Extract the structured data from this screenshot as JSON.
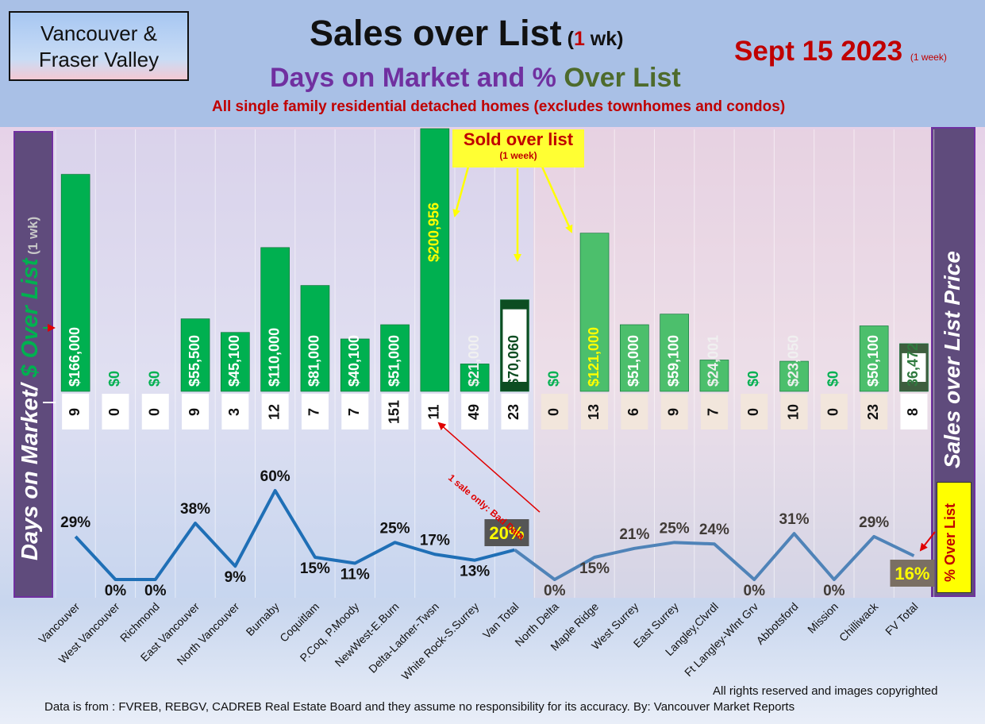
{
  "header": {
    "region_line1": "Vancouver &",
    "region_line2": "Fraser Valley",
    "title_main": "Sales over List",
    "title_paren_open": " (",
    "title_num": "1",
    "title_paren_close": " wk)",
    "subtitle_a": "Days on Market and % ",
    "subtitle_b": "Over List",
    "note": "All single family residential detached homes (excludes townhomes and condos)",
    "date": "Sept 15  2023",
    "date_note": "(1 week)"
  },
  "axis_labels": {
    "left_a": "Days on Market/ ",
    "left_b": "$ Over List",
    "left_c": " (1 wk)",
    "right": "Sales over List Price",
    "pct": "% Over List"
  },
  "callout": {
    "line1": "Sold over list",
    "line2": "(1 week)"
  },
  "annotation": "1 sale only: Bad Data",
  "footer": {
    "rights": "All rights reserved and  images copyrighted",
    "source": "Data is from : FVREB, REBGV, CADREB Real Estate Board and they assume no responsibility for its accuracy. By: Vancouver Market Reports"
  },
  "colors": {
    "bar": "#00b050",
    "fv_bar": "#4cbf6c",
    "line_van": "#1f6fb6",
    "line_fv": "#4f83b8",
    "total_van": "#0d4d22",
    "total_fv": "#3e5e3e"
  },
  "chart_data": {
    "type": "bar",
    "categories": [
      "Vancouver",
      "West Vancouver",
      "Richmond",
      "East Vancouver",
      "North Vancouver",
      "Burnaby",
      "Coquitlam",
      "P.Coq, P.Moody",
      "NewWest-E.Burn",
      "Delta-Ladner-Twsn",
      "White Rock-S.Surrey",
      "Van Total",
      "North Delta",
      "Maple Ridge",
      "West Surrey",
      "East Surrey",
      "Langley,Clvrdl",
      "Ft Langley-Wlnt Grv",
      "Abbotsford",
      "Mission",
      "Chilliwack",
      "FV Total"
    ],
    "series": [
      {
        "name": "$ Over List",
        "values": [
          166000,
          0,
          0,
          55500,
          45100,
          110000,
          81000,
          40100,
          51000,
          200956,
          21000,
          70060,
          0,
          121000,
          51000,
          59100,
          24001,
          0,
          23050,
          0,
          50100,
          36472
        ],
        "labels": [
          "$166,000",
          "$0",
          "$0",
          "$55,500",
          "$45,100",
          "$110,000",
          "$81,000",
          "$40,100",
          "$51,000",
          "$200,956",
          "$21,000",
          "$70,060",
          "$0",
          "$121,000",
          "$51,000",
          "$59,100",
          "$24,001",
          "$0",
          "$23,050",
          "$0",
          "$50,100",
          "36,472"
        ]
      },
      {
        "name": "Days on Market",
        "values": [
          9,
          0,
          0,
          9,
          3,
          12,
          7,
          7,
          151,
          11,
          49,
          23,
          0,
          13,
          6,
          9,
          7,
          0,
          10,
          0,
          23,
          8
        ],
        "labels": [
          "9",
          "0",
          "0",
          "9",
          "3",
          "12",
          "7",
          "7",
          "151",
          "11",
          "49",
          "23",
          "0",
          "13",
          "6",
          "9",
          "7",
          "0",
          "10",
          "0",
          "23",
          "8"
        ]
      },
      {
        "name": "% Over List",
        "values": [
          29,
          0,
          0,
          38,
          9,
          60,
          15,
          11,
          25,
          17,
          13,
          20,
          0,
          15,
          21,
          25,
          24,
          0,
          31,
          0,
          29,
          16
        ],
        "labels": [
          "29%",
          "0%",
          "0%",
          "38%",
          "9%",
          "60%",
          "15%",
          "11%",
          "25%",
          "17%",
          "13%",
          "20%",
          "0%",
          "15%",
          "21%",
          "25%",
          "24%",
          "0%",
          "31%",
          "0%",
          "29%",
          "16%"
        ]
      }
    ]
  }
}
